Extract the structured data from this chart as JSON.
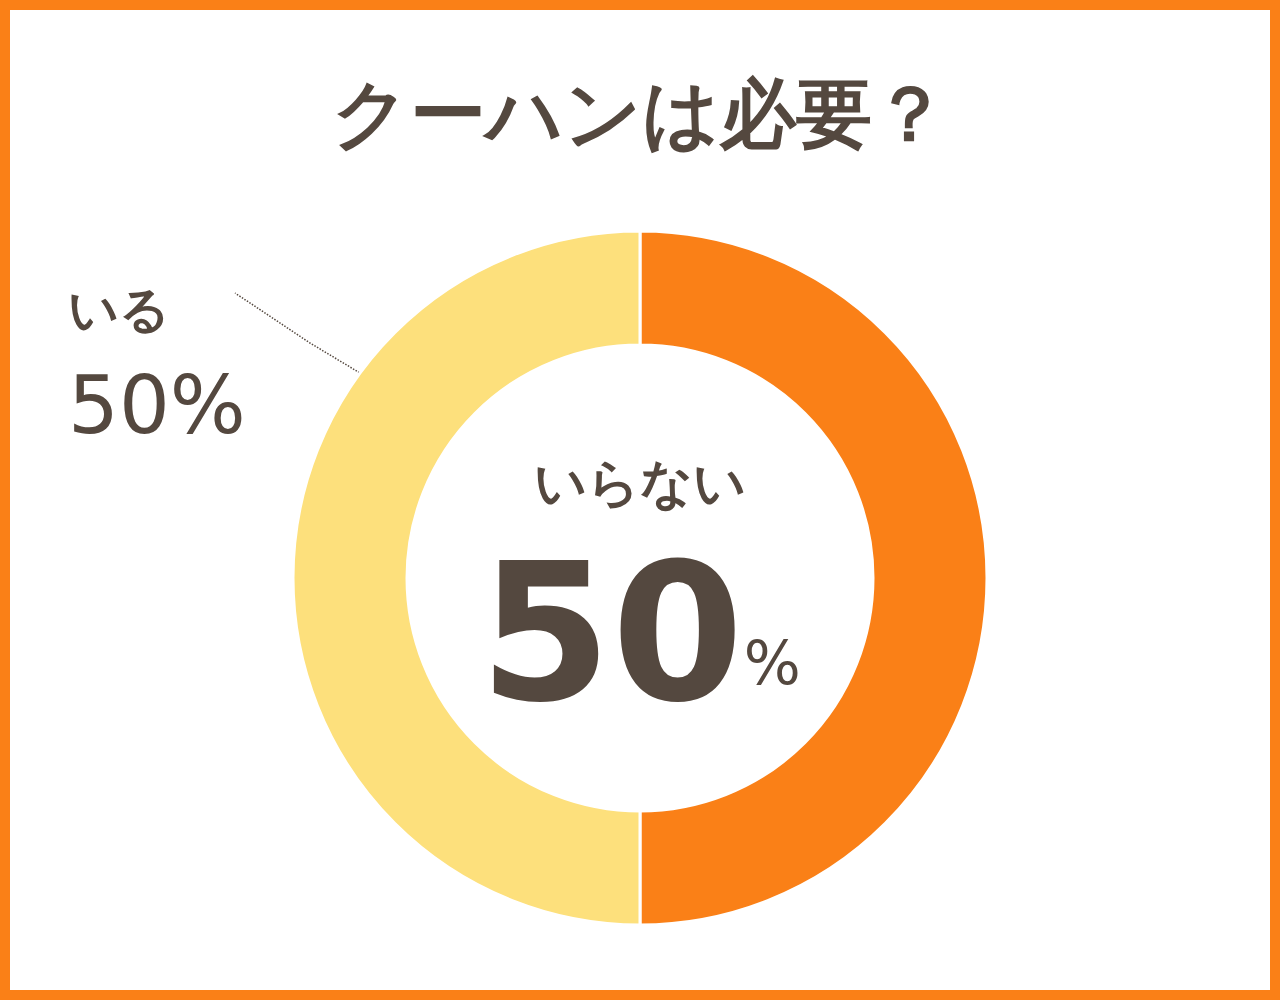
{
  "chart_data": {
    "type": "donut",
    "title": "クーハンは必要？",
    "categories": [
      "いらない",
      "いる"
    ],
    "values": [
      50,
      50
    ],
    "colors": [
      "#fa8017",
      "#fde07c"
    ],
    "value_labels": [
      "50%",
      "50%"
    ]
  }
}
